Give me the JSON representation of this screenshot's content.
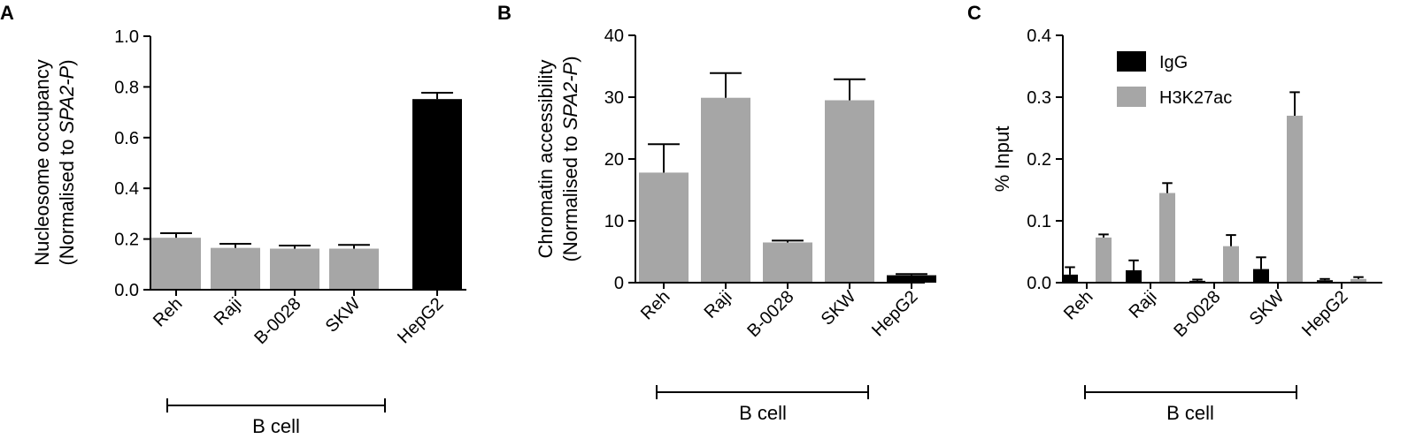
{
  "chart_data": [
    {
      "panel_label": "A",
      "type": "bar",
      "ylabel_line1": "Nucleosome occupancy",
      "ylabel_line2_prefix": "(Normalised to ",
      "ylabel_line2_italic": "SPA2-P",
      "ylabel_line2_suffix": ")",
      "ylim": [
        0,
        1.0
      ],
      "yticks": [
        "0.0",
        "0.2",
        "0.4",
        "0.6",
        "0.8",
        "1.0"
      ],
      "categories": [
        "Reh",
        "Raji",
        "B-0028",
        "SKW",
        "HepG2"
      ],
      "values": [
        0.205,
        0.165,
        0.162,
        0.162,
        0.752
      ],
      "errors": [
        0.018,
        0.016,
        0.012,
        0.015,
        0.025
      ],
      "bar_colors": [
        "#a6a6a6",
        "#a6a6a6",
        "#a6a6a6",
        "#a6a6a6",
        "#000000"
      ],
      "group_label": "B cell",
      "group_span": [
        "Reh",
        "SKW"
      ]
    },
    {
      "panel_label": "B",
      "type": "bar",
      "ylabel_line1": "Chromatin accessibility",
      "ylabel_line2_prefix": "(Normalised to ",
      "ylabel_line2_italic": "SPA2-P",
      "ylabel_line2_suffix": ")",
      "ylim": [
        0,
        40
      ],
      "yticks": [
        "0",
        "10",
        "20",
        "30",
        "40"
      ],
      "categories": [
        "Reh",
        "Raji",
        "B-0028",
        "SKW",
        "HepG2"
      ],
      "values": [
        17.8,
        29.9,
        6.5,
        29.5,
        1.2
      ],
      "errors": [
        4.6,
        4.0,
        0.3,
        3.4,
        0.2
      ],
      "bar_colors": [
        "#a6a6a6",
        "#a6a6a6",
        "#a6a6a6",
        "#a6a6a6",
        "#000000"
      ],
      "group_label": "B cell",
      "group_span": [
        "Reh",
        "SKW"
      ]
    },
    {
      "panel_label": "C",
      "type": "bar",
      "ylabel": "% Input",
      "ylim": [
        0,
        0.4
      ],
      "yticks": [
        "0.0",
        "0.1",
        "0.2",
        "0.3",
        "0.4"
      ],
      "categories": [
        "Reh",
        "Raji",
        "B-0028",
        "SKW",
        "HepG2"
      ],
      "series": [
        {
          "name": "IgG",
          "color": "#000000",
          "values": [
            0.013,
            0.02,
            0.003,
            0.022,
            0.004
          ],
          "errors": [
            0.012,
            0.016,
            0.002,
            0.019,
            0.002
          ]
        },
        {
          "name": "H3K27ac",
          "color": "#a6a6a6",
          "values": [
            0.073,
            0.145,
            0.059,
            0.27,
            0.006
          ],
          "errors": [
            0.005,
            0.016,
            0.018,
            0.038,
            0.003
          ]
        }
      ],
      "legend_position": "top-right",
      "group_label": "B cell",
      "group_span": [
        "Reh",
        "SKW"
      ]
    }
  ]
}
